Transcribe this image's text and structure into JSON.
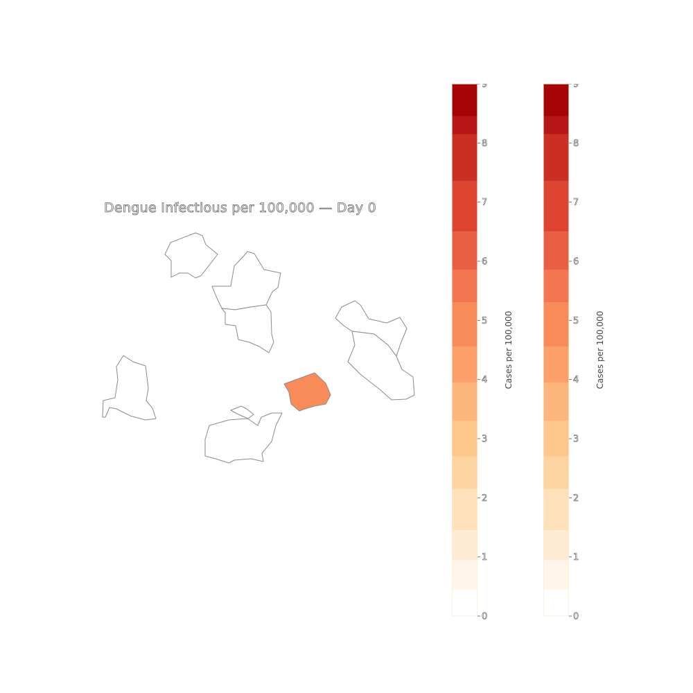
{
  "title": "Dengue Infectious per 100,000 — Day 0",
  "colorbar": {
    "label": "Cases per 100,000",
    "min": 0,
    "max": 9,
    "ticks": [
      "0",
      "1",
      "2",
      "3",
      "4",
      "5",
      "6",
      "7",
      "8",
      "9"
    ],
    "colors": [
      "#ffffff",
      "#fff5e9",
      "#feebd3",
      "#fee1bb",
      "#fdd4a1",
      "#fdc68a",
      "#fcb57a",
      "#fba069",
      "#f98b58",
      "#f37650",
      "#ea5f44",
      "#dd4532",
      "#cb2f23",
      "#b61618",
      "#a50305",
      "#8b0000"
    ],
    "boundaries": [
      0,
      0.45,
      0.95,
      1.45,
      2.15,
      2.7,
      3.3,
      3.95,
      4.55,
      5.3,
      5.85,
      6.5,
      7.35,
      8.15,
      8.45,
      9
    ]
  },
  "regions": [
    {
      "name": "region-northwest",
      "value": null
    },
    {
      "name": "region-north-upper",
      "value": null
    },
    {
      "name": "region-north-lower",
      "value": null
    },
    {
      "name": "region-east-upper",
      "value": null
    },
    {
      "name": "region-east-lower",
      "value": null
    },
    {
      "name": "region-west",
      "value": null
    },
    {
      "name": "region-central",
      "value": 5.2
    },
    {
      "name": "region-southwest",
      "value": null
    },
    {
      "name": "region-south-islet",
      "value": null
    }
  ]
}
